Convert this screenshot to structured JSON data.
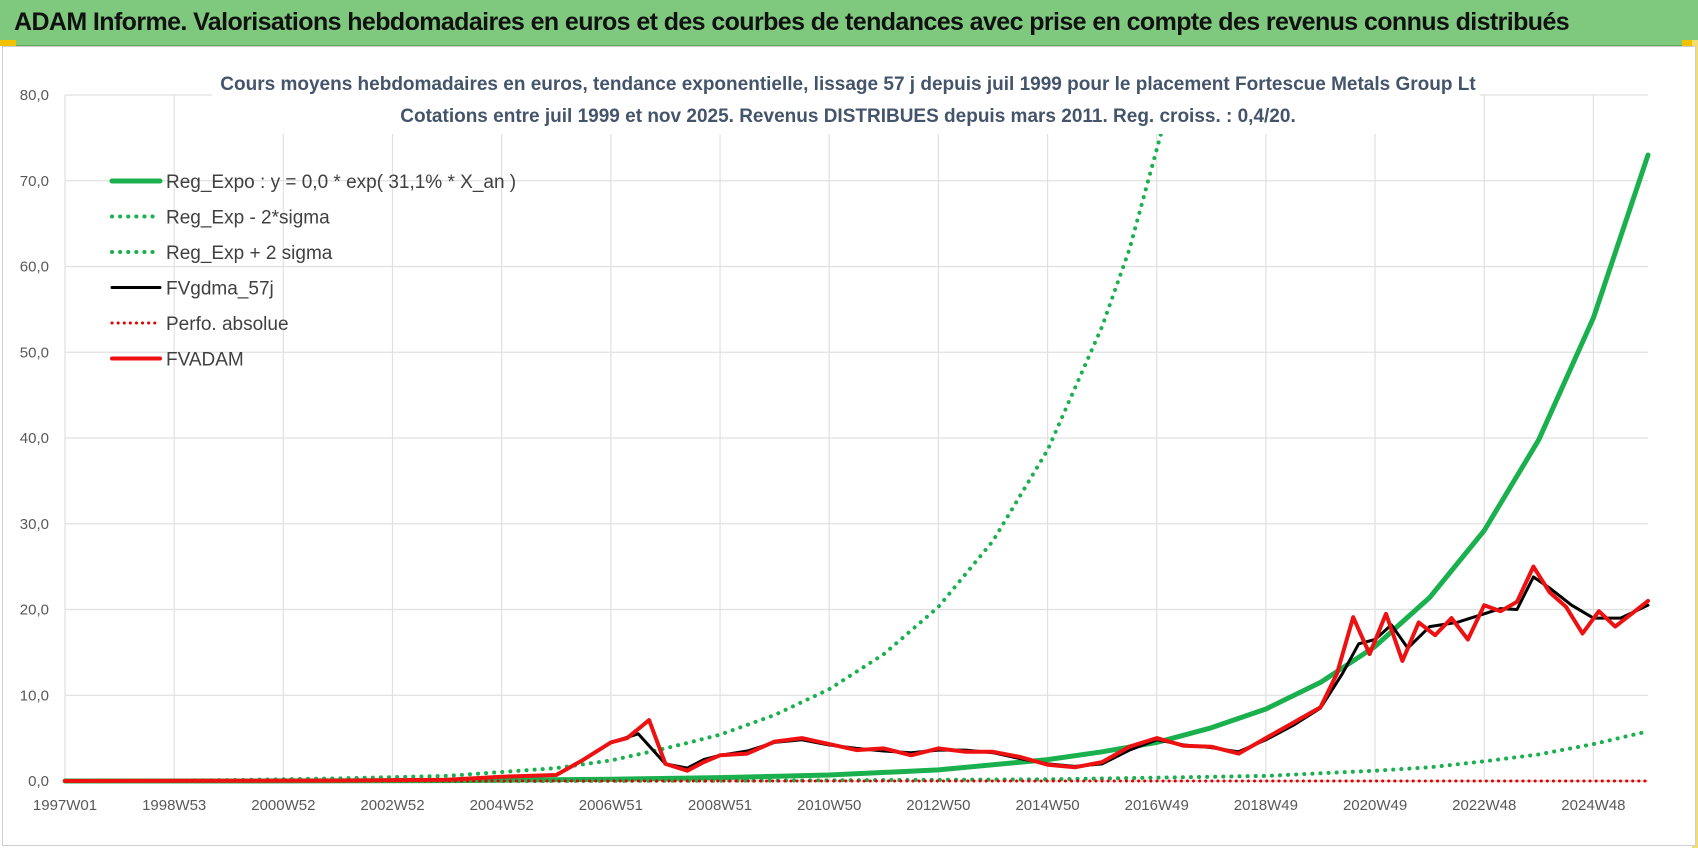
{
  "banner": {
    "title": "ADAM Informe. Valorisations hebdomadaires en euros et des courbes de tendances avec prise en compte des revenus connus distribués"
  },
  "colors": {
    "banner_bg": "#7fc97f",
    "reg_expo": "#1ab04e",
    "reg_sigma": "#1ab04e",
    "fvgdma": "#000000",
    "perfo": "#e00000",
    "fvadam": "#ee1111",
    "grid": "#e0e0e0"
  },
  "chart_data": {
    "type": "line",
    "title": [
      "Cours moyens hebdomadaires en euros, tendance exponentielle, lissage 57 j depuis juil 1999 pour le placement Fortescue Metals Group Lt",
      "Cotations entre juil 1999 et nov 2025. Revenus DISTRIBUES depuis mars 2011. Reg. croiss. : 0,4/20."
    ],
    "xlabel": "",
    "ylabel": "",
    "x_tick_labels": [
      "1997W01",
      "1998W53",
      "2000W52",
      "2002W52",
      "2004W52",
      "2006W51",
      "2008W51",
      "2010W50",
      "2012W50",
      "2014W50",
      "2016W49",
      "2018W49",
      "2020W49",
      "2022W48",
      "2024W48"
    ],
    "x_tick_years": [
      1997.0,
      1999.0,
      2001.0,
      2003.0,
      2005.0,
      2007.0,
      2009.0,
      2011.0,
      2013.0,
      2015.0,
      2017.0,
      2019.0,
      2021.0,
      2023.0,
      2025.0
    ],
    "xlim": [
      1997.0,
      2026.0
    ],
    "ylim": [
      0,
      80
    ],
    "y_ticks": [
      "0,0",
      "10,0",
      "20,0",
      "30,0",
      "40,0",
      "50,0",
      "60,0",
      "70,0",
      "80,0"
    ],
    "grid": true,
    "legend_position": "top-left",
    "series": [
      {
        "name": "Reg_Expo : y = 0,0 * exp( 31,1% *  X_an )",
        "style": "solid-thick",
        "x": [
          1997,
          2000,
          2004,
          2007,
          2009,
          2011,
          2013,
          2015,
          2016,
          2017,
          2018,
          2019,
          2020,
          2021,
          2022,
          2023,
          2024,
          2025,
          2026
        ],
        "y": [
          0.0,
          0.0,
          0.05,
          0.2,
          0.4,
          0.7,
          1.3,
          2.5,
          3.4,
          4.5,
          6.2,
          8.4,
          11.5,
          15.7,
          21.4,
          29.2,
          39.8,
          54.0,
          73.0
        ]
      },
      {
        "name": "Reg_Exp - 2*sigma",
        "style": "dotted",
        "x": [
          1997,
          2005,
          2010,
          2015,
          2017,
          2019,
          2020,
          2021,
          2022,
          2023,
          2024,
          2025,
          2026
        ],
        "y": [
          0.0,
          0.0,
          0.05,
          0.2,
          0.4,
          0.6,
          0.9,
          1.2,
          1.6,
          2.3,
          3.1,
          4.3,
          5.8
        ]
      },
      {
        "name": "Reg_Exp + 2 sigma",
        "style": "dotted",
        "x": [
          1997,
          2000,
          2002,
          2004,
          2006,
          2007,
          2008,
          2009,
          2010,
          2011,
          2012,
          2013,
          2014,
          2015,
          2016,
          2016.5,
          2017.1
        ],
        "y": [
          0.0,
          0.1,
          0.3,
          0.6,
          1.5,
          2.4,
          3.8,
          5.4,
          7.7,
          10.7,
          14.8,
          20.3,
          28.0,
          38.6,
          53.0,
          62.0,
          76.0
        ]
      },
      {
        "name": "FVgdma_57j",
        "style": "solid",
        "x": [
          1997,
          2002,
          2004,
          2005,
          2006,
          2006.5,
          2007,
          2007.5,
          2008,
          2008.4,
          2008.7,
          2009,
          2009.5,
          2010,
          2010.5,
          2011,
          2011.5,
          2012,
          2012.5,
          2013,
          2013.5,
          2014,
          2014.5,
          2015,
          2015.5,
          2016,
          2016.5,
          2017,
          2017.5,
          2018,
          2018.5,
          2019,
          2019.5,
          2020,
          2020.4,
          2020.7,
          2021,
          2021.3,
          2021.6,
          2022,
          2022.5,
          2023,
          2023.3,
          2023.6,
          2023.9,
          2024.2,
          2024.6,
          2025,
          2025.5,
          2026
        ],
        "y": [
          0.0,
          0.05,
          0.15,
          0.5,
          0.7,
          2.5,
          4.5,
          5.5,
          2.0,
          1.5,
          2.5,
          3.0,
          3.5,
          4.5,
          4.8,
          4.2,
          3.8,
          3.5,
          3.3,
          3.6,
          3.6,
          3.3,
          2.6,
          2.0,
          1.7,
          2.0,
          3.6,
          4.8,
          4.2,
          3.9,
          3.4,
          4.8,
          6.5,
          8.5,
          12.5,
          16.0,
          16.5,
          18.2,
          15.5,
          18.0,
          18.5,
          19.5,
          20.1,
          20.0,
          23.8,
          22.5,
          20.5,
          19.0,
          19.0,
          20.5
        ]
      },
      {
        "name": "Perfo. absolue",
        "style": "dotted",
        "x": [
          1997,
          2026
        ],
        "y": [
          0.0,
          0.0
        ]
      },
      {
        "name": "FVADAM",
        "style": "solid-thick",
        "x": [
          1997,
          2002,
          2004,
          2005,
          2006,
          2006.5,
          2007,
          2007.3,
          2007.7,
          2008,
          2008.4,
          2008.7,
          2009,
          2009.5,
          2010,
          2010.5,
          2011,
          2011.5,
          2012,
          2012.5,
          2013,
          2013.5,
          2014,
          2014.5,
          2015,
          2015.5,
          2016,
          2016.5,
          2017,
          2017.5,
          2018,
          2018.5,
          2019,
          2019.5,
          2020,
          2020.3,
          2020.6,
          2020.9,
          2021.2,
          2021.5,
          2021.8,
          2022.1,
          2022.4,
          2022.7,
          2023,
          2023.3,
          2023.6,
          2023.9,
          2024.2,
          2024.5,
          2024.8,
          2025.1,
          2025.4,
          2025.7,
          2026
        ],
        "y": [
          0.0,
          0.05,
          0.15,
          0.5,
          0.7,
          2.5,
          4.5,
          5.0,
          7.1,
          2.0,
          1.2,
          2.2,
          3.0,
          3.2,
          4.6,
          5.0,
          4.3,
          3.6,
          3.8,
          3.0,
          3.8,
          3.4,
          3.4,
          2.8,
          1.9,
          1.6,
          2.2,
          4.0,
          5.0,
          4.1,
          4.0,
          3.2,
          5.0,
          6.8,
          8.6,
          12.5,
          19.1,
          14.8,
          19.5,
          14.0,
          18.5,
          17.0,
          19.0,
          16.5,
          20.5,
          19.8,
          20.9,
          25.0,
          22.0,
          20.3,
          17.2,
          19.8,
          18.0,
          19.5,
          21.0
        ]
      }
    ]
  }
}
